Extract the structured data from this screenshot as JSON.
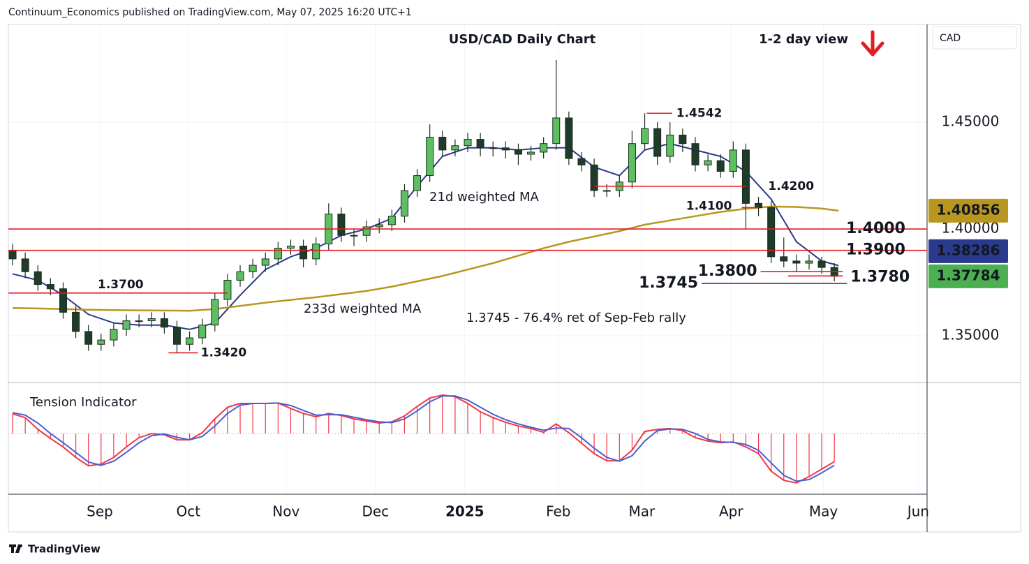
{
  "chart_data": {
    "type": "candlestick",
    "header": "Continuum_Economics published on TradingView.com, May 07, 2025 16:20 UTC+1",
    "title": "USD/CAD Daily Chart",
    "subtitle": "1-2 day view",
    "currency": "CAD",
    "footer": "TradingView",
    "grid": true,
    "xlim": [
      0,
      218
    ],
    "xticks": [
      {
        "value": 21.7,
        "label": "Sep"
      },
      {
        "value": 42.7,
        "label": "Oct"
      },
      {
        "value": 65.9,
        "label": "Nov"
      },
      {
        "value": 87.1,
        "label": "Dec"
      },
      {
        "value": 108.3,
        "label": "2025"
      },
      {
        "value": 130.5,
        "label": "Feb"
      },
      {
        "value": 150.3,
        "label": "Mar"
      },
      {
        "value": 171.5,
        "label": "Apr"
      },
      {
        "value": 193.4,
        "label": "May"
      },
      {
        "value": 215.9,
        "label": "Jun"
      }
    ],
    "ylim": [
      1.3281,
      1.4958
    ],
    "yticks": [
      {
        "value": 1.35,
        "label": "1.35000"
      },
      {
        "value": 1.4,
        "label": "1.40000"
      },
      {
        "value": 1.45,
        "label": "1.45000"
      }
    ],
    "candles": {
      "up_color": "#5cbf60",
      "down_color": "#1f3b2a",
      "outline": "#1d2b1f",
      "last_color": "#4caf50",
      "x": [
        1,
        4,
        7,
        10,
        13,
        16,
        19,
        22,
        25,
        28,
        31,
        34,
        37,
        40,
        43,
        46,
        49,
        52,
        55,
        58,
        61,
        64,
        67,
        70,
        73,
        76,
        79,
        82,
        85,
        88,
        91,
        94,
        97,
        100,
        103,
        106,
        109,
        112,
        115,
        118,
        121,
        124,
        127,
        130,
        133,
        136,
        139,
        142,
        145,
        148,
        151,
        154,
        157,
        160,
        163,
        166,
        169,
        172,
        175,
        178,
        181,
        184,
        187,
        190,
        193,
        196
      ],
      "open": [
        1.39,
        1.386,
        1.38,
        1.374,
        1.372,
        1.361,
        1.352,
        1.346,
        1.348,
        1.353,
        1.357,
        1.357,
        1.358,
        1.354,
        1.346,
        1.349,
        1.355,
        1.367,
        1.376,
        1.38,
        1.383,
        1.386,
        1.391,
        1.392,
        1.386,
        1.393,
        1.407,
        1.397,
        1.397,
        1.401,
        1.402,
        1.406,
        1.418,
        1.425,
        1.443,
        1.437,
        1.439,
        1.442,
        1.438,
        1.438,
        1.437,
        1.435,
        1.436,
        1.44,
        1.452,
        1.433,
        1.43,
        1.418,
        1.418,
        1.422,
        1.44,
        1.447,
        1.434,
        1.444,
        1.44,
        1.43,
        1.432,
        1.427,
        1.437,
        1.412,
        1.41,
        1.387,
        1.385,
        1.384,
        1.385,
        1.382
      ],
      "high": [
        1.393,
        1.389,
        1.383,
        1.377,
        1.375,
        1.364,
        1.355,
        1.351,
        1.356,
        1.36,
        1.36,
        1.361,
        1.361,
        1.357,
        1.352,
        1.358,
        1.37,
        1.379,
        1.383,
        1.386,
        1.389,
        1.394,
        1.395,
        1.395,
        1.396,
        1.412,
        1.41,
        1.4,
        1.404,
        1.405,
        1.409,
        1.421,
        1.428,
        1.449,
        1.446,
        1.442,
        1.445,
        1.445,
        1.441,
        1.441,
        1.44,
        1.439,
        1.443,
        1.4792,
        1.455,
        1.436,
        1.433,
        1.421,
        1.425,
        1.446,
        1.4542,
        1.45,
        1.45,
        1.447,
        1.443,
        1.435,
        1.435,
        1.441,
        1.44,
        1.415,
        1.413,
        1.396,
        1.388,
        1.388,
        1.387,
        1.384
      ],
      "low": [
        1.383,
        1.377,
        1.371,
        1.369,
        1.358,
        1.349,
        1.343,
        1.343,
        1.345,
        1.35,
        1.354,
        1.354,
        1.351,
        1.342,
        1.343,
        1.346,
        1.352,
        1.364,
        1.373,
        1.377,
        1.38,
        1.383,
        1.388,
        1.382,
        1.383,
        1.39,
        1.394,
        1.392,
        1.394,
        1.398,
        1.399,
        1.403,
        1.415,
        1.422,
        1.434,
        1.434,
        1.436,
        1.434,
        1.434,
        1.433,
        1.43,
        1.432,
        1.433,
        1.437,
        1.43,
        1.427,
        1.415,
        1.415,
        1.415,
        1.419,
        1.437,
        1.43,
        1.431,
        1.436,
        1.427,
        1.427,
        1.424,
        1.424,
        1.4,
        1.406,
        1.384,
        1.382,
        1.38,
        1.381,
        1.379,
        1.3755
      ],
      "close": [
        1.386,
        1.38,
        1.374,
        1.372,
        1.361,
        1.352,
        1.346,
        1.348,
        1.353,
        1.357,
        1.357,
        1.358,
        1.354,
        1.346,
        1.349,
        1.355,
        1.367,
        1.376,
        1.38,
        1.383,
        1.386,
        1.391,
        1.392,
        1.386,
        1.393,
        1.407,
        1.397,
        1.397,
        1.401,
        1.402,
        1.406,
        1.418,
        1.425,
        1.443,
        1.437,
        1.439,
        1.442,
        1.438,
        1.438,
        1.437,
        1.435,
        1.436,
        1.44,
        1.452,
        1.433,
        1.43,
        1.418,
        1.418,
        1.422,
        1.44,
        1.447,
        1.434,
        1.444,
        1.44,
        1.43,
        1.432,
        1.427,
        1.437,
        1.412,
        1.41,
        1.387,
        1.385,
        1.384,
        1.385,
        1.382,
        1.37784
      ]
    },
    "series": [
      {
        "name": "21d weighted MA",
        "color": "#2a3a8c",
        "x": [
          1,
          7,
          13,
          19,
          25,
          31,
          37,
          43,
          49,
          55,
          61,
          67,
          73,
          79,
          85,
          91,
          97,
          103,
          109,
          115,
          121,
          127,
          133,
          139,
          145,
          151,
          157,
          163,
          169,
          175,
          181,
          187,
          193,
          197
        ],
        "values": [
          1.379,
          1.376,
          1.369,
          1.36,
          1.356,
          1.355,
          1.355,
          1.353,
          1.356,
          1.369,
          1.381,
          1.387,
          1.391,
          1.397,
          1.4,
          1.405,
          1.42,
          1.434,
          1.438,
          1.438,
          1.437,
          1.438,
          1.438,
          1.429,
          1.425,
          1.437,
          1.44,
          1.437,
          1.434,
          1.427,
          1.414,
          1.394,
          1.385,
          1.38286
        ]
      },
      {
        "name": "233d weighted MA",
        "color": "#b8961f",
        "x": [
          1,
          7,
          13,
          19,
          25,
          31,
          37,
          43,
          49,
          55,
          61,
          67,
          73,
          79,
          85,
          91,
          97,
          103,
          109,
          115,
          121,
          127,
          133,
          139,
          145,
          151,
          157,
          163,
          169,
          175,
          181,
          187,
          193,
          197
        ],
        "values": [
          1.363,
          1.3628,
          1.3625,
          1.3622,
          1.362,
          1.3619,
          1.3618,
          1.3617,
          1.3625,
          1.364,
          1.3655,
          1.3668,
          1.368,
          1.3695,
          1.371,
          1.373,
          1.3755,
          1.378,
          1.381,
          1.384,
          1.3875,
          1.391,
          1.394,
          1.3965,
          1.399,
          1.402,
          1.404,
          1.406,
          1.408,
          1.4095,
          1.4105,
          1.4103,
          1.4096,
          1.40856
        ]
      }
    ],
    "levels": [
      {
        "value": 1.4542,
        "label": "1.4542",
        "color": "#e31b23",
        "x": [
          151.5,
          157.5
        ]
      },
      {
        "value": 1.42,
        "label": "1.4200",
        "color": "#e31b23",
        "x": [
          139,
          175
        ]
      },
      {
        "value": 1.41,
        "label": "1.4100",
        "color": "#e31b23",
        "x": [
          174,
          178
        ]
      },
      {
        "value": 1.4,
        "label": "1.4000",
        "color": "#e31b23",
        "x": [
          0,
          218
        ]
      },
      {
        "value": 1.39,
        "label": "1.3900",
        "color": "#e31b23",
        "x": [
          0,
          218
        ]
      },
      {
        "value": 1.38,
        "label": "1.3800",
        "color": "#e31b23",
        "x": [
          178.5,
          198
        ]
      },
      {
        "value": 1.378,
        "label": "1.3780",
        "color": "#e31b23",
        "x": [
          185,
          198
        ]
      },
      {
        "value": 1.3745,
        "label": "1.3745",
        "color": "#6b2a5e",
        "x": [
          164.5,
          199
        ]
      },
      {
        "value": 1.37,
        "label": "1.3700",
        "color": "#e31b23",
        "x": [
          0,
          52
        ]
      },
      {
        "value": 1.342,
        "label": "1.3420",
        "color": "#e31b23",
        "x": [
          38,
          45
        ]
      }
    ],
    "annotations": [
      {
        "text": "1.3745 - 76.4% ret of Sep-Feb rally",
        "color": "#6b2a5e"
      }
    ],
    "indicator": {
      "title": "Tension Indicator",
      "ylim": [
        -1.45,
        1.22
      ],
      "series": [
        {
          "color": "#f23645",
          "values": [
            0.47,
            0.38,
            0.1,
            -0.12,
            -0.32,
            -0.57,
            -0.77,
            -0.73,
            -0.57,
            -0.32,
            -0.1,
            0,
            -0.03,
            -0.15,
            -0.15,
            0.02,
            0.35,
            0.63,
            0.72,
            0.72,
            0.72,
            0.73,
            0.6,
            0.48,
            0.4,
            0.48,
            0.43,
            0.35,
            0.3,
            0.25,
            0.28,
            0.42,
            0.65,
            0.85,
            0.92,
            0.88,
            0.72,
            0.52,
            0.38,
            0.27,
            0.18,
            0.12,
            0.03,
            0.23,
            0.02,
            -0.23,
            -0.48,
            -0.65,
            -0.65,
            -0.4,
            0.05,
            0.1,
            0.12,
            0.07,
            -0.1,
            -0.18,
            -0.22,
            -0.2,
            -0.32,
            -0.48,
            -0.9,
            -1.12,
            -1.18,
            -1.03,
            -0.85,
            -0.67
          ]
        },
        {
          "color": "#4a5fd0",
          "values": [
            0.5,
            0.44,
            0.25,
            0.0,
            -0.22,
            -0.45,
            -0.68,
            -0.76,
            -0.66,
            -0.45,
            -0.22,
            -0.05,
            -0.01,
            -0.09,
            -0.15,
            -0.07,
            0.18,
            0.48,
            0.68,
            0.72,
            0.72,
            0.73,
            0.67,
            0.55,
            0.44,
            0.45,
            0.45,
            0.39,
            0.33,
            0.28,
            0.26,
            0.35,
            0.54,
            0.76,
            0.9,
            0.9,
            0.8,
            0.63,
            0.46,
            0.33,
            0.23,
            0.15,
            0.08,
            0.13,
            0.12,
            -0.1,
            -0.35,
            -0.57,
            -0.66,
            -0.53,
            -0.18,
            0.07,
            0.11,
            0.1,
            0.0,
            -0.14,
            -0.2,
            -0.21,
            -0.26,
            -0.4,
            -0.7,
            -1.0,
            -1.14,
            -1.1,
            -0.94,
            -0.76
          ]
        }
      ]
    }
  }
}
